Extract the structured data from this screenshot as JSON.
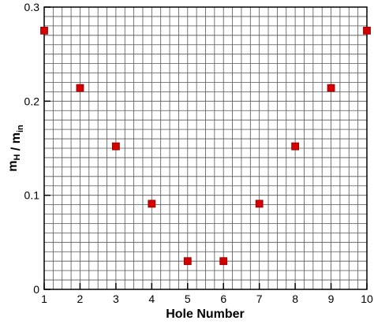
{
  "chart_data": {
    "type": "scatter",
    "xlabel": "Hole Number",
    "ylabel_parts": [
      {
        "text": "m",
        "sub": "H"
      },
      {
        "text": " / m",
        "sub": "in"
      }
    ],
    "x": [
      1,
      2,
      3,
      4,
      5,
      6,
      7,
      8,
      9,
      10
    ],
    "series": [
      {
        "color": "#d40000",
        "values": [
          0.275,
          0.214,
          0.152,
          0.091,
          0.03,
          0.03,
          0.091,
          0.152,
          0.214,
          0.275
        ]
      }
    ],
    "xlim": [
      1,
      10
    ],
    "ylim": [
      0,
      0.3
    ],
    "xticks": [
      1,
      2,
      3,
      4,
      5,
      6,
      7,
      8,
      9,
      10
    ],
    "yticks": [
      0,
      0.1,
      0.2,
      0.3
    ],
    "xminorticks": [
      1,
      1.25,
      1.5,
      1.75,
      2,
      2.25,
      2.5,
      2.75,
      3,
      3.25,
      3.5,
      3.75,
      4,
      4.25,
      4.5,
      4.75,
      5,
      5.25,
      5.5,
      5.75,
      6,
      6.25,
      6.5,
      6.75,
      7,
      7.25,
      7.5,
      7.75,
      8,
      8.25,
      8.5,
      8.75,
      9,
      9.25,
      9.5,
      9.75,
      10
    ],
    "yminorticks": [
      0,
      0.01,
      0.02,
      0.03,
      0.04,
      0.05,
      0.06,
      0.07,
      0.08,
      0.09,
      0.1,
      0.11,
      0.12,
      0.13,
      0.14,
      0.15,
      0.16,
      0.17,
      0.18,
      0.19,
      0.2,
      0.21,
      0.22,
      0.23,
      0.24,
      0.25,
      0.26,
      0.27,
      0.28,
      0.29,
      0.3
    ],
    "grid": true
  }
}
